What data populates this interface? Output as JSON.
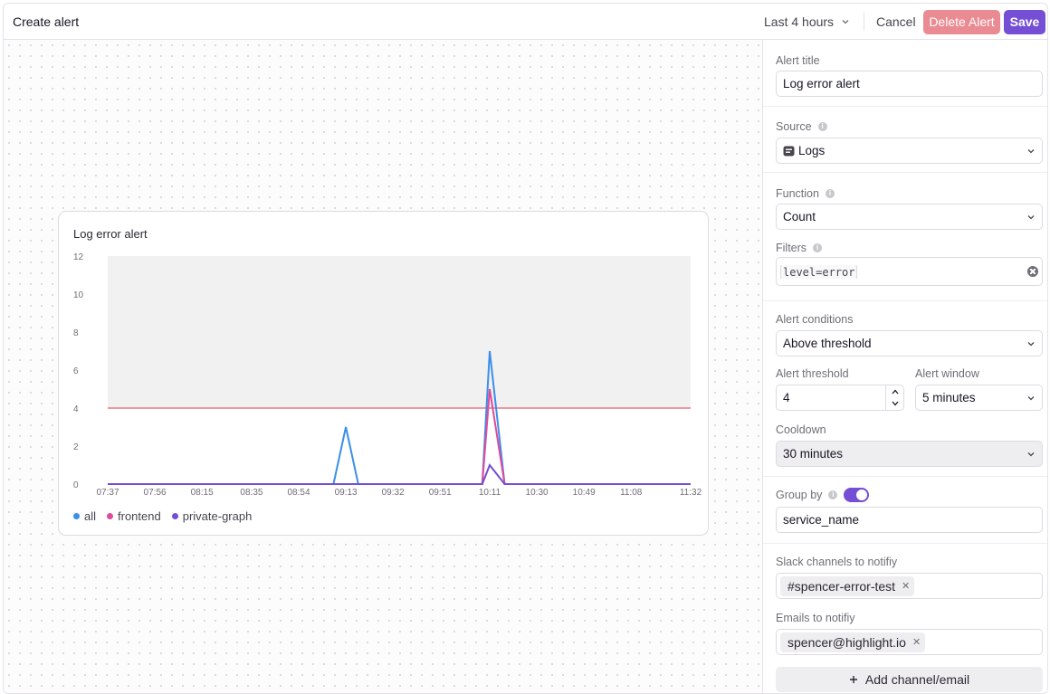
{
  "header": {
    "title": "Create alert",
    "time_range": "Last 4 hours",
    "cancel_label": "Cancel",
    "delete_label": "Delete Alert",
    "save_label": "Save"
  },
  "colors": {
    "primary": "#744ed4",
    "danger": "#ea8b93",
    "threshold_line": "#e8787f",
    "series_all": "#3b8eea",
    "series_frontend": "#e04a9b",
    "series_private_graph": "#744ed4"
  },
  "chart": {
    "title": "Log error alert"
  },
  "chart_data": {
    "type": "line",
    "title": "Log error alert",
    "xlabel": "",
    "ylabel": "",
    "x_ticks": [
      "07:37",
      "07:56",
      "08:15",
      "08:35",
      "08:54",
      "09:13",
      "09:32",
      "09:51",
      "10:11",
      "10:30",
      "10:49",
      "11:08",
      "11:32"
    ],
    "y_ticks": [
      0,
      2,
      4,
      6,
      8,
      10,
      12
    ],
    "ylim": [
      0,
      12
    ],
    "threshold": 4,
    "legend_position": "bottom-left",
    "grid": false,
    "series": [
      {
        "name": "all",
        "color": "#3b8eea",
        "points": [
          [
            "07:37",
            0
          ],
          [
            "09:08",
            0
          ],
          [
            "09:13",
            3
          ],
          [
            "09:18",
            0
          ],
          [
            "10:08",
            0
          ],
          [
            "10:11",
            7
          ],
          [
            "10:17",
            0
          ],
          [
            "11:32",
            0
          ]
        ]
      },
      {
        "name": "frontend",
        "color": "#e04a9b",
        "points": [
          [
            "07:37",
            0
          ],
          [
            "10:08",
            0
          ],
          [
            "10:11",
            5
          ],
          [
            "10:17",
            0
          ],
          [
            "11:32",
            0
          ]
        ]
      },
      {
        "name": "private-graph",
        "color": "#744ed4",
        "points": [
          [
            "07:37",
            0
          ],
          [
            "10:08",
            0
          ],
          [
            "10:11",
            1
          ],
          [
            "10:17",
            0
          ],
          [
            "11:32",
            0
          ]
        ]
      }
    ]
  },
  "form": {
    "alert_title_label": "Alert title",
    "alert_title_value": "Log error alert",
    "source_label": "Source",
    "source_value": "Logs",
    "function_label": "Function",
    "function_value": "Count",
    "filters_label": "Filters",
    "filters_value": "level=error",
    "conditions_label": "Alert conditions",
    "conditions_value": "Above threshold",
    "threshold_label": "Alert threshold",
    "threshold_value": "4",
    "window_label": "Alert window",
    "window_value": "5 minutes",
    "cooldown_label": "Cooldown",
    "cooldown_value": "30 minutes",
    "group_by_label": "Group by",
    "group_by_enabled": true,
    "group_by_value": "service_name",
    "slack_label": "Slack channels to notifiy",
    "slack_channels": [
      "#spencer-error-test"
    ],
    "emails_label": "Emails to notifiy",
    "emails": [
      "spencer@highlight.io"
    ],
    "add_channel_label": "Add channel/email"
  }
}
